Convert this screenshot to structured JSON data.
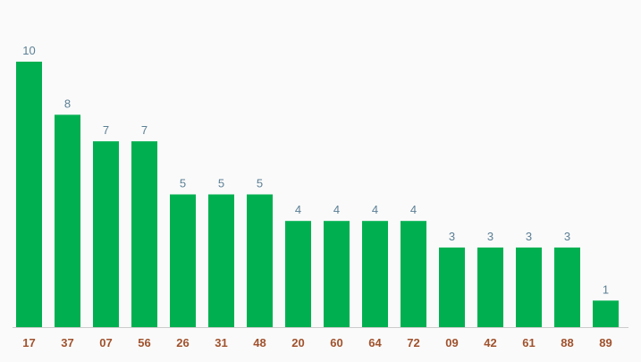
{
  "chart_data": {
    "type": "bar",
    "categories": [
      "17",
      "37",
      "07",
      "56",
      "26",
      "31",
      "48",
      "20",
      "60",
      "64",
      "72",
      "09",
      "42",
      "61",
      "88",
      "89"
    ],
    "values": [
      10,
      8,
      7,
      7,
      5,
      5,
      5,
      4,
      4,
      4,
      4,
      3,
      3,
      3,
      3,
      1
    ],
    "title": "",
    "xlabel": "",
    "ylabel": "",
    "ylim": [
      0,
      10
    ],
    "grid": false,
    "legend": "none",
    "data_labels": true
  },
  "colors": {
    "bar": "#00b050",
    "value_label": "#5b7f95",
    "tick_label": "#a0522d",
    "baseline": "#cccccc",
    "background": "#fafafa"
  }
}
